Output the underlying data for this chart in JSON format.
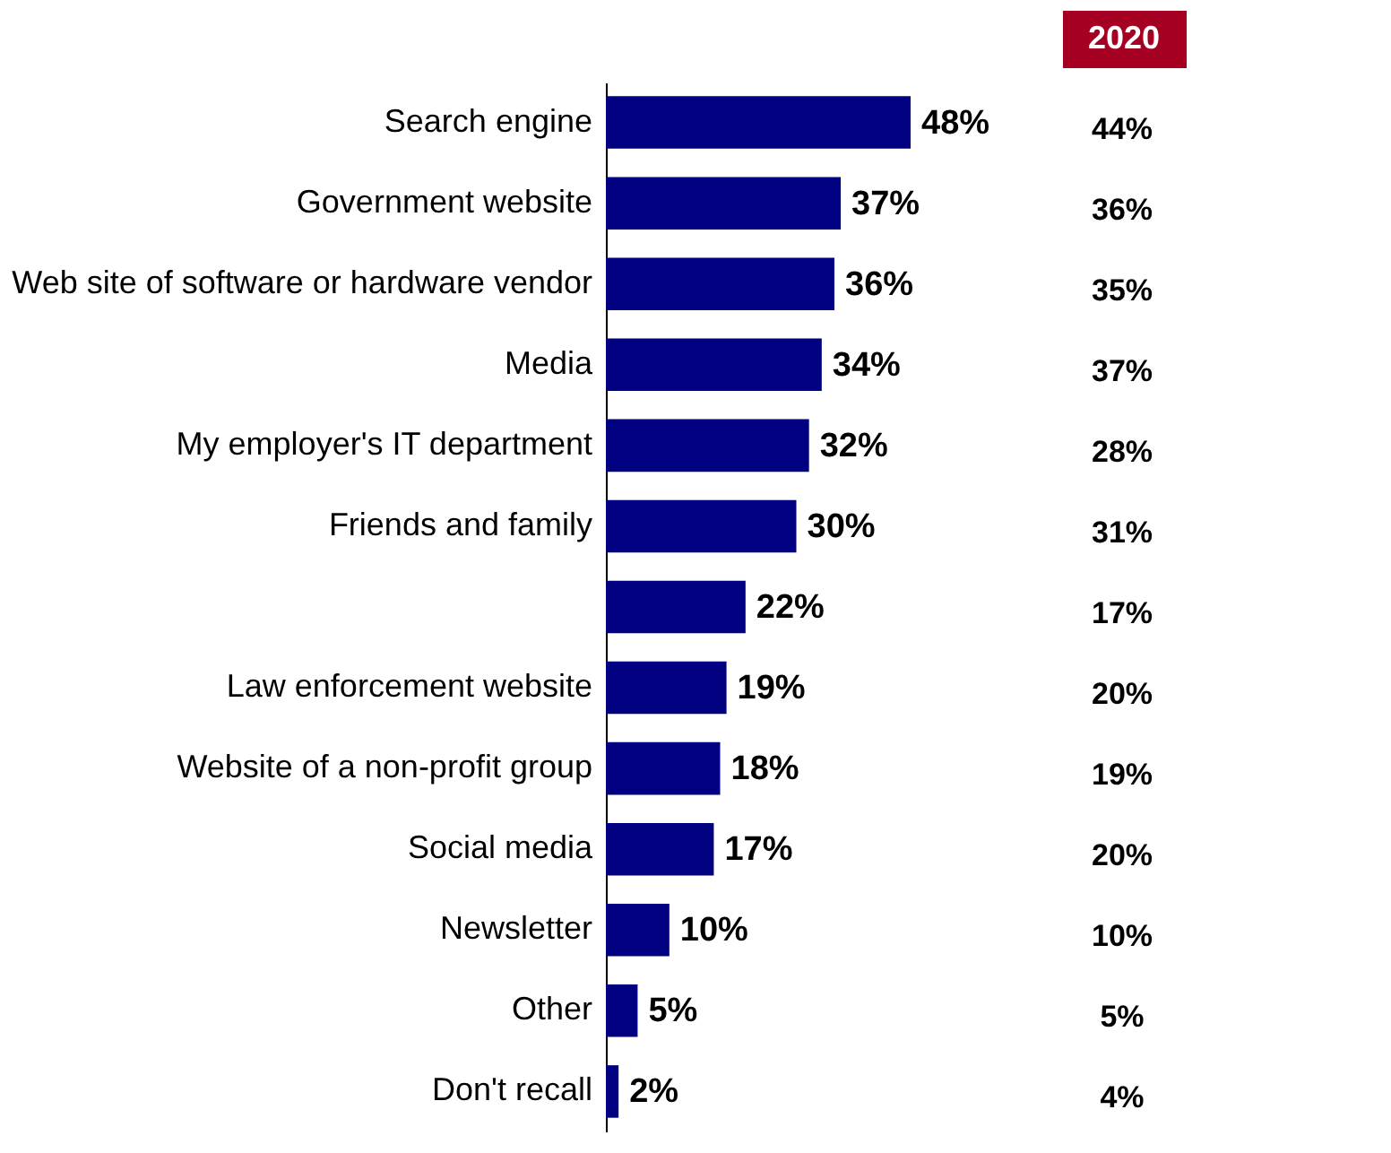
{
  "chart_data": {
    "type": "bar",
    "orientation": "horizontal",
    "categories": [
      "Search engine",
      "Government website",
      "Web site of software or hardware vendor",
      "Media",
      "My employer's IT department",
      "Friends and family",
      null,
      "Law enforcement website",
      "Website of a non-profit group",
      "Social media",
      "Newsletter",
      "Other",
      "Don't recall"
    ],
    "color": "#000080",
    "values": [
      48,
      37,
      36,
      34,
      32,
      30,
      22,
      19,
      18,
      17,
      10,
      5,
      2
    ],
    "value_labels": [
      "48%",
      "37%",
      "36%",
      "34%",
      "32%",
      "30%",
      "22%",
      "19%",
      "18%",
      "17%",
      "10%",
      "5%",
      "2%"
    ],
    "annotations": [
      "2020",
      "44%",
      "36%",
      "35%",
      "37%",
      "28%",
      "31%",
      "17%",
      "20%",
      "19%",
      "20%",
      "10%",
      "5%",
      "4%"
    ]
  }
}
